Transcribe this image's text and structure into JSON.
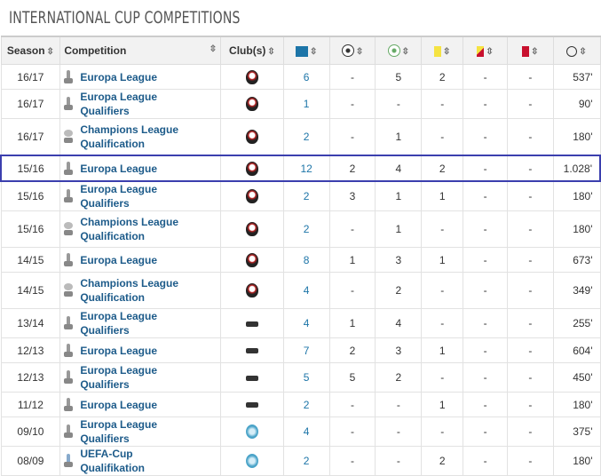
{
  "title": "INTERNATIONAL CUP COMPETITIONS",
  "headers": {
    "season": "Season",
    "competition": "Competition",
    "clubs": "Club(s)",
    "sort_icon": "⇳"
  },
  "header_icons": [
    "appearances-icon",
    "goals-icon",
    "assists-icon",
    "yellow-card-icon",
    "yellow-red-card-icon",
    "red-card-icon",
    "minutes-clock-icon"
  ],
  "colors": {
    "link": "#1d5b8a",
    "highlight_border": "#3b3fae",
    "yellow": "#f5e342",
    "red": "#c8102e"
  },
  "rows": [
    {
      "season": "16/17",
      "competition": "Europa League",
      "trophy": "el",
      "club": "sparta",
      "apps": "6",
      "goals": "-",
      "assists": "5",
      "yellow": "2",
      "yellowred": "-",
      "red": "-",
      "minutes": "537'"
    },
    {
      "season": "16/17",
      "competition": "Europa League Qualifiers",
      "trophy": "el",
      "club": "sparta",
      "apps": "1",
      "goals": "-",
      "assists": "-",
      "yellow": "-",
      "yellowred": "-",
      "red": "-",
      "minutes": "90'"
    },
    {
      "season": "16/17",
      "competition": "Champions League Qualification",
      "trophy": "cl",
      "club": "sparta",
      "apps": "2",
      "goals": "-",
      "assists": "1",
      "yellow": "-",
      "yellowred": "-",
      "red": "-",
      "minutes": "180'"
    },
    {
      "season": "15/16",
      "competition": "Europa League",
      "trophy": "el",
      "club": "sparta",
      "apps": "12",
      "goals": "2",
      "assists": "4",
      "yellow": "2",
      "yellowred": "-",
      "red": "-",
      "minutes": "1.028'",
      "highlighted": true
    },
    {
      "season": "15/16",
      "competition": "Europa League Qualifiers",
      "trophy": "el",
      "club": "sparta",
      "apps": "2",
      "goals": "3",
      "assists": "1",
      "yellow": "1",
      "yellowred": "-",
      "red": "-",
      "minutes": "180'"
    },
    {
      "season": "15/16",
      "competition": "Champions League Qualification",
      "trophy": "cl",
      "club": "sparta",
      "apps": "2",
      "goals": "-",
      "assists": "1",
      "yellow": "-",
      "yellowred": "-",
      "red": "-",
      "minutes": "180'"
    },
    {
      "season": "14/15",
      "competition": "Europa League",
      "trophy": "el",
      "club": "sparta",
      "apps": "8",
      "goals": "1",
      "assists": "3",
      "yellow": "1",
      "yellowred": "-",
      "red": "-",
      "minutes": "673'"
    },
    {
      "season": "14/15",
      "competition": "Champions League Qualification",
      "trophy": "cl",
      "club": "sparta",
      "apps": "4",
      "goals": "-",
      "assists": "2",
      "yellow": "-",
      "yellowred": "-",
      "red": "-",
      "minutes": "349'"
    },
    {
      "season": "13/14",
      "competition": "Europa League Qualifiers",
      "trophy": "el",
      "club": "c2",
      "apps": "4",
      "goals": "1",
      "assists": "4",
      "yellow": "-",
      "yellowred": "-",
      "red": "-",
      "minutes": "255'"
    },
    {
      "season": "12/13",
      "competition": "Europa League",
      "trophy": "el",
      "club": "c2",
      "apps": "7",
      "goals": "2",
      "assists": "3",
      "yellow": "1",
      "yellowred": "-",
      "red": "-",
      "minutes": "604'"
    },
    {
      "season": "12/13",
      "competition": "Europa League Qualifiers",
      "trophy": "el",
      "club": "c2",
      "apps": "5",
      "goals": "5",
      "assists": "2",
      "yellow": "-",
      "yellowred": "-",
      "red": "-",
      "minutes": "450'"
    },
    {
      "season": "11/12",
      "competition": "Europa League",
      "trophy": "el",
      "club": "c2",
      "apps": "2",
      "goals": "-",
      "assists": "-",
      "yellow": "1",
      "yellowred": "-",
      "red": "-",
      "minutes": "180'"
    },
    {
      "season": "09/10",
      "competition": "Europa League Qualifiers",
      "trophy": "el",
      "club": "c3",
      "apps": "4",
      "goals": "-",
      "assists": "-",
      "yellow": "-",
      "yellowred": "-",
      "red": "-",
      "minutes": "375'"
    },
    {
      "season": "08/09",
      "competition": "UEFA-Cup Qualifikation",
      "trophy": "uefa",
      "club": "c3",
      "apps": "2",
      "goals": "-",
      "assists": "-",
      "yellow": "2",
      "yellowred": "-",
      "red": "-",
      "minutes": "180'"
    }
  ]
}
